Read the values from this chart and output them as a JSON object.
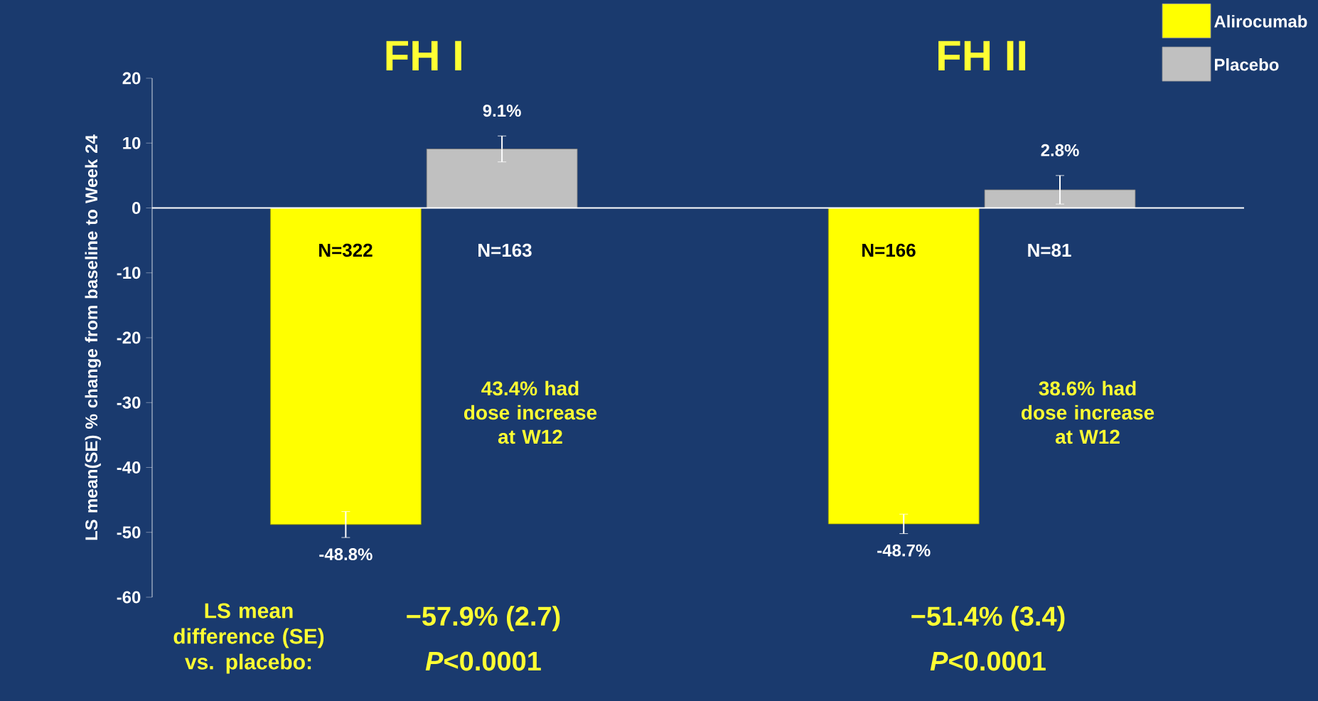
{
  "chart_data": {
    "type": "bar",
    "ylabel": "LS mean(SE) % change from baseline to Week 24",
    "categories": [
      "FH I",
      "FH II"
    ],
    "series": [
      {
        "name": "Alirocumab",
        "color": "#ffff00",
        "values": [
          -48.8,
          -48.7
        ],
        "errors": [
          2,
          1.5
        ],
        "value_labels": [
          "-48.8%",
          "-48.7%"
        ]
      },
      {
        "name": "Placebo",
        "color": "#c0c0c0",
        "values": [
          9.1,
          2.8
        ],
        "errors": [
          2,
          2.2
        ],
        "value_labels": [
          "9.1%",
          "2.8%"
        ]
      }
    ],
    "ylim": [
      -60,
      20
    ],
    "yticks": [
      -60,
      -50,
      -40,
      -30,
      -20,
      -10,
      0,
      10,
      20
    ],
    "legend": "top right",
    "annotations": [
      "N=322",
      "N=163",
      "N=166",
      "N=81",
      "43.4% had dose increase at W12",
      "38.6% had dose increase at W12",
      "LS mean difference (SE) vs. placebo:",
      "−57.9%  (2.7)",
      "*P*<0.0001",
      "−51.4%  (3.4)",
      "*P*<0.0001"
    ]
  }
}
